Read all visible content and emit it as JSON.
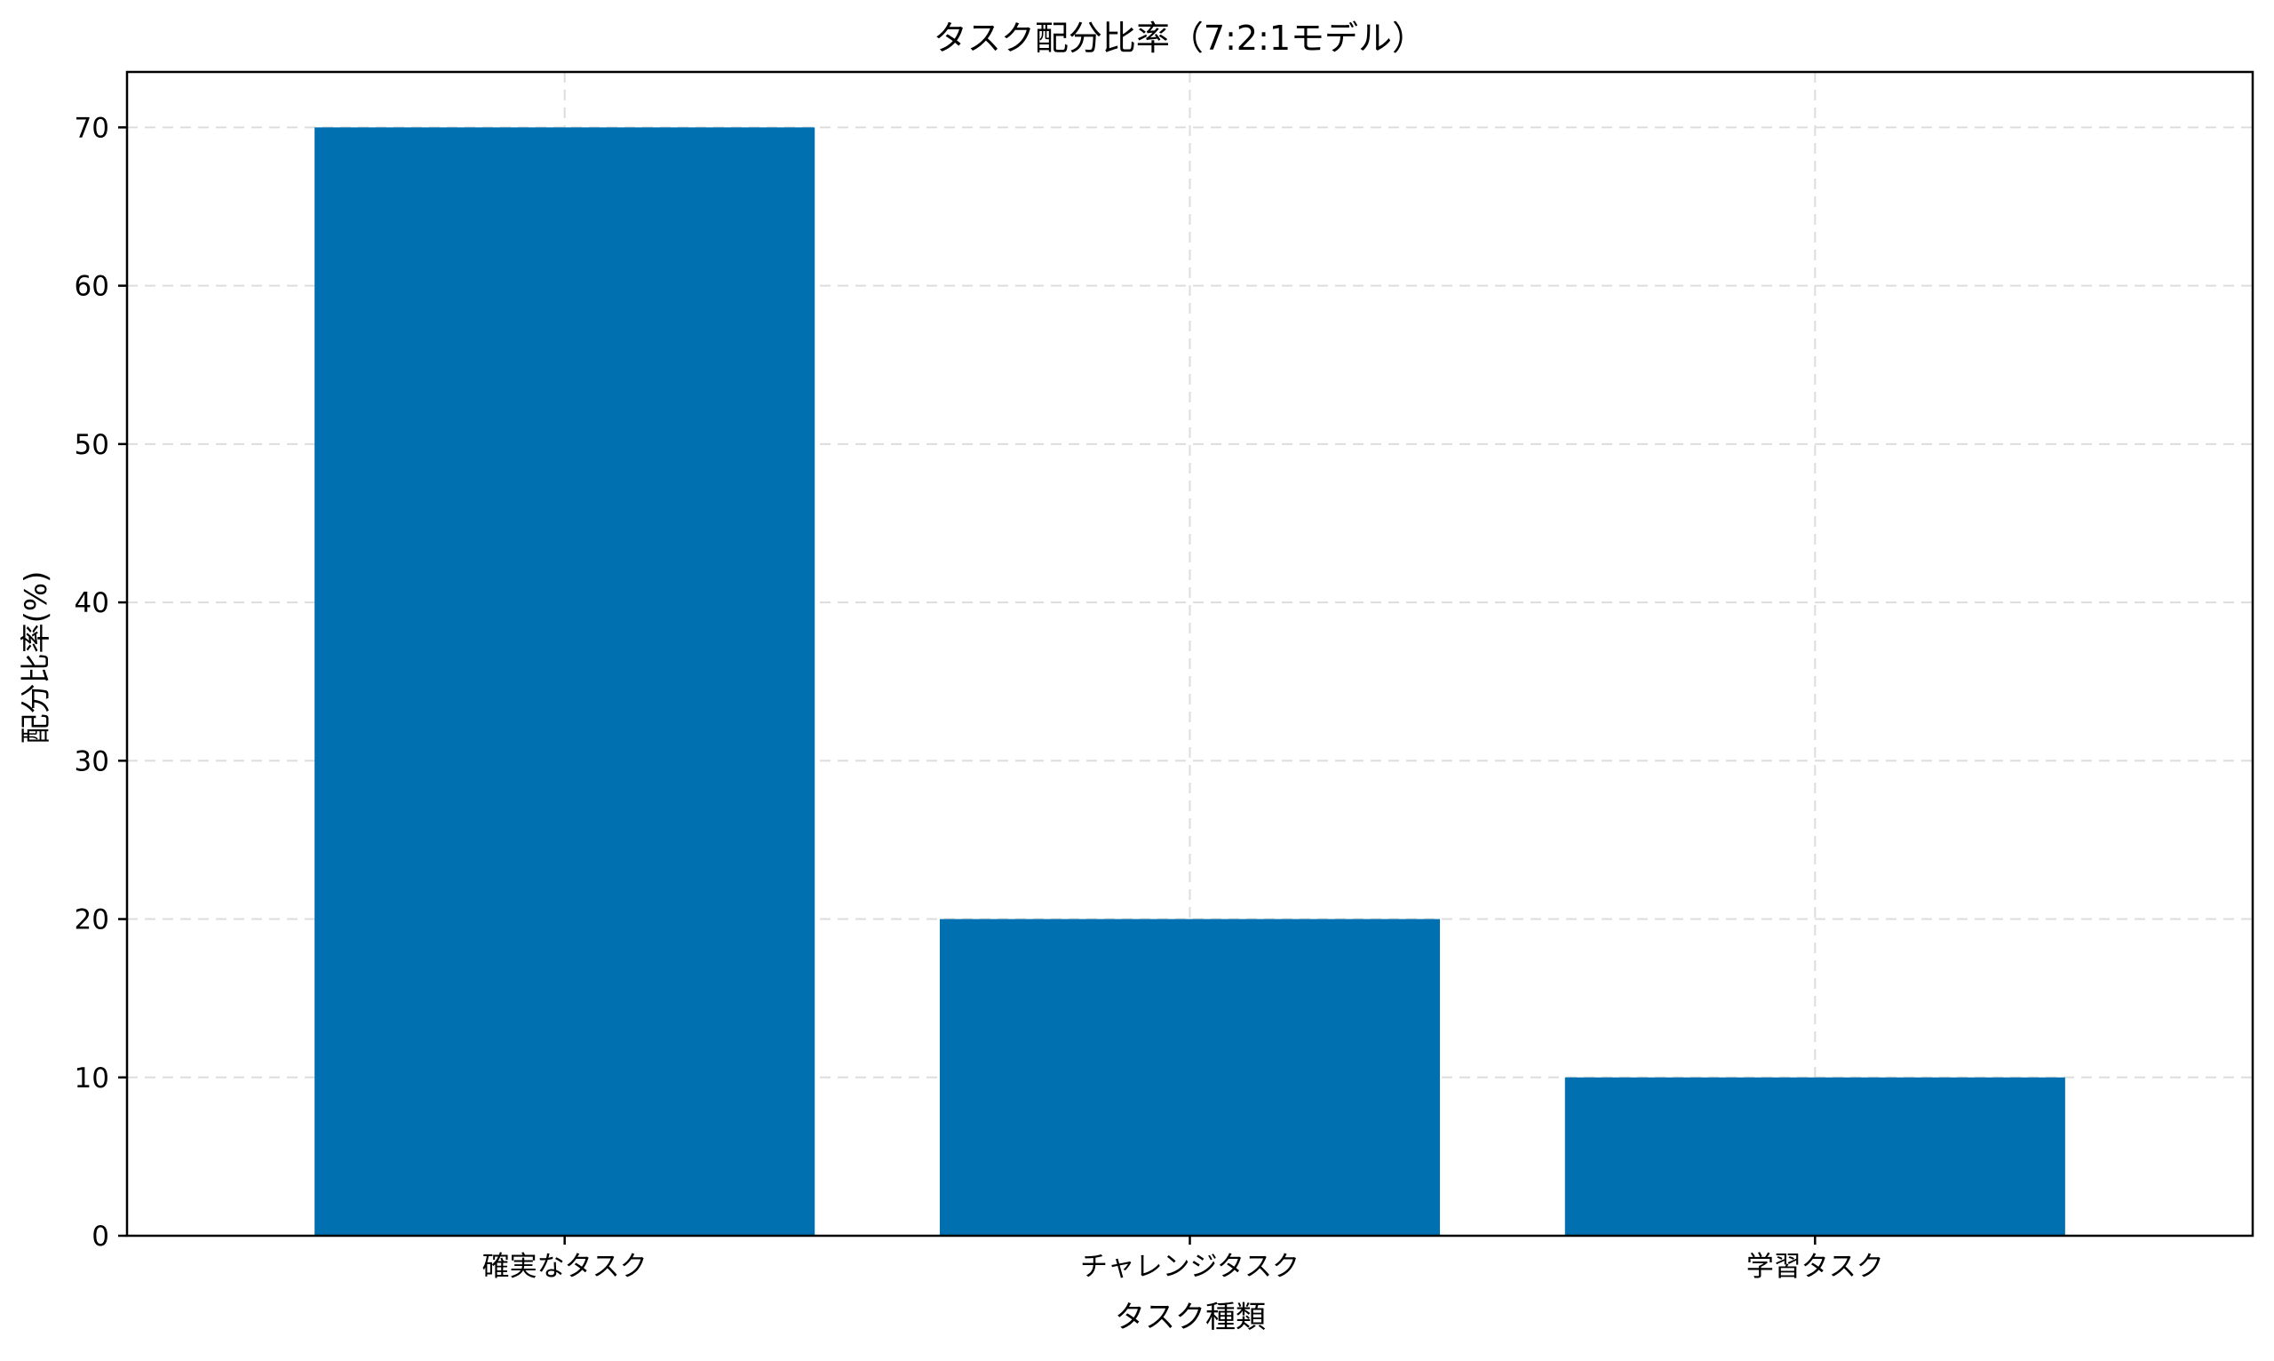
{
  "chart_data": {
    "type": "bar",
    "title": "タスク配分比率（7:2:1モデル）",
    "xlabel": "タスク種類",
    "ylabel": "配分比率(%)",
    "categories": [
      "確実なタスク",
      "チャレンジタスク",
      "学習タスク"
    ],
    "values": [
      70,
      20,
      10
    ],
    "ylim": [
      0,
      73.5
    ],
    "yticks": [
      0,
      10,
      20,
      30,
      40,
      50,
      60,
      70
    ],
    "grid": true,
    "bar_color": "#0070b0"
  }
}
